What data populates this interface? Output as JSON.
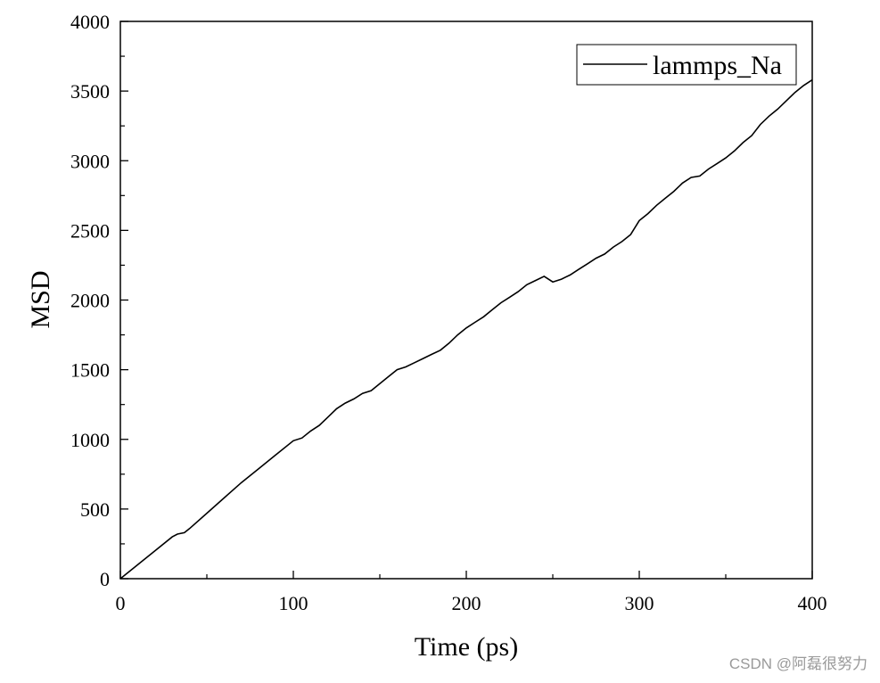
{
  "chart_data": {
    "type": "line",
    "title": "",
    "xlabel": "Time (ps)",
    "ylabel": "MSD",
    "xlim": [
      0,
      400
    ],
    "ylim": [
      0,
      4000
    ],
    "xticks": [
      0,
      100,
      200,
      300,
      400
    ],
    "yticks": [
      0,
      500,
      1000,
      1500,
      2000,
      2500,
      3000,
      3500,
      4000
    ],
    "grid": false,
    "legend_position": "top-right",
    "series": [
      {
        "name": "lammps_Na",
        "color": "#000000",
        "x": [
          0,
          10,
          20,
          30,
          33,
          37,
          40,
          50,
          60,
          70,
          80,
          90,
          100,
          105,
          110,
          115,
          120,
          125,
          130,
          135,
          140,
          145,
          150,
          155,
          160,
          165,
          170,
          175,
          180,
          185,
          190,
          195,
          200,
          205,
          210,
          215,
          220,
          225,
          230,
          235,
          240,
          245,
          250,
          255,
          260,
          265,
          270,
          275,
          280,
          285,
          290,
          295,
          300,
          305,
          310,
          315,
          320,
          325,
          330,
          335,
          340,
          345,
          350,
          355,
          360,
          365,
          370,
          375,
          380,
          385,
          390,
          395,
          400
        ],
        "y": [
          0,
          100,
          200,
          300,
          320,
          330,
          360,
          470,
          580,
          690,
          790,
          890,
          990,
          1010,
          1060,
          1100,
          1160,
          1220,
          1260,
          1290,
          1330,
          1350,
          1400,
          1450,
          1500,
          1520,
          1550,
          1580,
          1610,
          1640,
          1690,
          1750,
          1800,
          1840,
          1880,
          1930,
          1980,
          2020,
          2060,
          2110,
          2140,
          2170,
          2130,
          2150,
          2180,
          2220,
          2260,
          2300,
          2330,
          2380,
          2420,
          2470,
          2570,
          2620,
          2680,
          2730,
          2780,
          2840,
          2880,
          2890,
          2940,
          2980,
          3020,
          3070,
          3130,
          3180,
          3260,
          3320,
          3370,
          3430,
          3490,
          3540,
          3580
        ]
      }
    ]
  },
  "watermark": "CSDN @阿磊很努力"
}
